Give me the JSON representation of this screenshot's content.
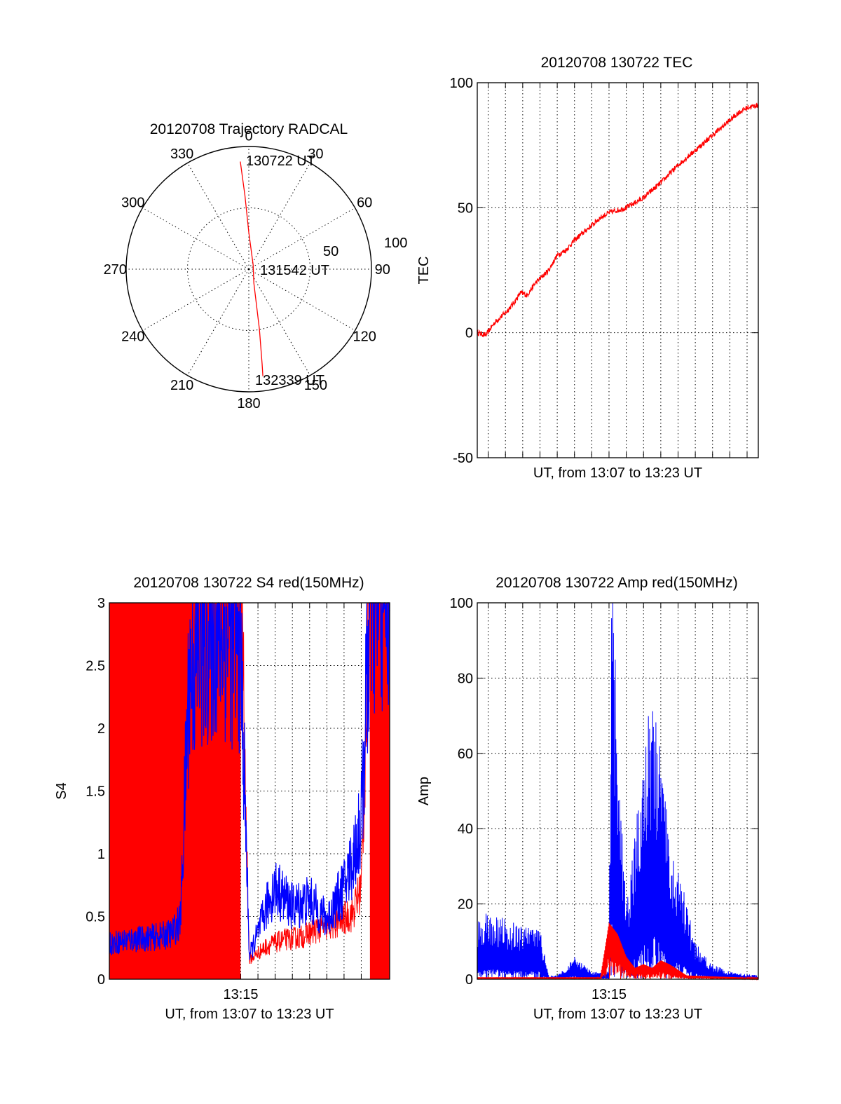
{
  "colors": {
    "red": "#ff0000",
    "blue": "#0000ff",
    "axis": "#000000"
  },
  "chart_data": [
    {
      "type": "polar",
      "title": "20120708 Trajectory RADCAL",
      "angle_ticks": [
        "0",
        "30",
        "60",
        "90",
        "120",
        "150",
        "180",
        "210",
        "240",
        "270",
        "300",
        "330"
      ],
      "radius_ticks": [
        "50",
        "100"
      ],
      "rlim": [
        0,
        100
      ],
      "angle_direction": "clockwise from top",
      "grid": true,
      "annotations": [
        "130722 UT",
        "131542 UT",
        "132339 UT"
      ],
      "series": [
        {
          "color": "#ff0000",
          "points_az_r": [
            [
              355.5,
              88
            ],
            [
              357,
              60
            ],
            [
              0,
              30
            ],
            [
              45,
              5
            ],
            [
              160,
              12
            ],
            [
              170,
              50
            ],
            [
              172,
              78
            ],
            [
              172.5,
              88
            ]
          ]
        }
      ]
    },
    {
      "type": "line",
      "title": "20120708 130722 TEC",
      "xlabel": "UT, from 13:07 to 13:23 UT",
      "ylabel": "TEC",
      "xlim": [
        "13:07:22",
        "13:23:39"
      ],
      "ylim": [
        -50,
        100
      ],
      "yticks": [
        "-50",
        "0",
        "50",
        "100"
      ],
      "grid": true,
      "series": [
        {
          "color": "#ff0000",
          "x": [
            "13:07:22",
            "13:07:52",
            "13:08:22",
            "13:09:00",
            "13:09:30",
            "13:09:52",
            "13:10:15",
            "13:10:45",
            "13:11:30",
            "13:12:00",
            "13:12:30",
            "13:13:00",
            "13:13:30",
            "13:14:00",
            "13:14:30",
            "13:15:00",
            "13:15:30",
            "13:16:00",
            "13:16:30",
            "13:17:00",
            "13:18:00",
            "13:19:00",
            "13:20:00",
            "13:21:00",
            "13:22:00",
            "13:22:30",
            "13:23:00",
            "13:23:39"
          ],
          "values": [
            0,
            -1,
            4,
            8,
            12,
            16,
            15,
            20,
            25,
            31,
            33,
            37,
            40,
            43,
            46,
            48,
            49,
            50,
            52,
            54,
            60,
            67,
            73,
            79,
            85,
            88,
            90,
            91
          ]
        }
      ]
    },
    {
      "type": "line",
      "title": "20120708 130722 S4 red(150MHz)",
      "xlabel": "UT, from 13:07 to 13:23 UT",
      "ylabel": "S4",
      "xlim": [
        "13:07:22",
        "13:23:39"
      ],
      "ylim": [
        0,
        3
      ],
      "yticks": [
        "0",
        "0.5",
        "1",
        "1.5",
        "2",
        "2.5",
        "3"
      ],
      "xticks": [
        "13:15"
      ],
      "grid": true,
      "series": [
        {
          "color": "#ff0000",
          "x": [
            "13:07:22",
            "13:09:00",
            "13:11:00",
            "13:13:00",
            "13:15:00",
            "13:15:30",
            "13:16:30",
            "13:17:30",
            "13:18:30",
            "13:19:30",
            "13:20:30",
            "13:21:30",
            "13:22:00",
            "13:22:30",
            "13:23:39"
          ],
          "values": [
            3,
            3,
            3,
            3,
            3,
            0.15,
            0.25,
            0.3,
            0.32,
            0.38,
            0.42,
            0.5,
            0.7,
            3,
            3
          ],
          "note": "spikes between 0 and 3 from 13:07 to 13:15 and after 13:22:30"
        },
        {
          "color": "#0000ff",
          "x": [
            "13:07:22",
            "13:08:30",
            "13:09:30",
            "13:10:30",
            "13:11:00",
            "13:11:30",
            "13:12:00",
            "13:13:00",
            "13:14:00",
            "13:15:00",
            "13:15:30",
            "13:16:00",
            "13:16:30",
            "13:17:00",
            "13:18:00",
            "13:19:00",
            "13:20:00",
            "13:21:00",
            "13:21:30",
            "13:22:00",
            "13:22:30",
            "13:23:00",
            "13:23:39"
          ],
          "values": [
            0.27,
            0.3,
            0.31,
            0.33,
            0.35,
            0.45,
            2.3,
            2.6,
            2.7,
            2.5,
            0.18,
            0.35,
            0.55,
            0.7,
            0.55,
            0.6,
            0.45,
            0.7,
            0.9,
            1.2,
            2.8,
            2.9,
            3
          ],
          "note": "noisy"
        }
      ]
    },
    {
      "type": "line",
      "title": "20120708 130722 Amp red(150MHz)",
      "xlabel": "UT, from 13:07 to 13:23 UT",
      "ylabel": "Amp",
      "xlim": [
        "13:07:22",
        "13:23:39"
      ],
      "ylim": [
        0,
        100
      ],
      "yticks": [
        "0",
        "20",
        "40",
        "60",
        "80",
        "100"
      ],
      "xticks": [
        "13:15"
      ],
      "grid": true,
      "series": [
        {
          "color": "#ff0000",
          "x": [
            "13:07:22",
            "13:11:30",
            "13:14:30",
            "13:15:00",
            "13:15:30",
            "13:16:00",
            "13:16:30",
            "13:17:00",
            "13:17:30",
            "13:18:00",
            "13:18:30",
            "13:19:30",
            "13:23:39"
          ],
          "values": [
            0.5,
            0.5,
            0.5,
            15,
            12,
            6,
            3,
            4,
            3,
            5,
            4,
            1,
            0.3
          ]
        },
        {
          "color": "#0000ff",
          "x": [
            "13:07:22",
            "13:08:00",
            "13:09:00",
            "13:10:00",
            "13:11:00",
            "13:11:30",
            "13:12:00",
            "13:13:00",
            "13:14:00",
            "13:15:00",
            "13:15:10",
            "13:15:30",
            "13:16:00",
            "13:16:30",
            "13:17:00",
            "13:17:30",
            "13:18:00",
            "13:18:30",
            "13:19:00",
            "13:19:30",
            "13:20:00",
            "13:21:00",
            "13:22:00",
            "13:23:39"
          ],
          "values": [
            8,
            9,
            8,
            7,
            7,
            0.5,
            0.5,
            3,
            1,
            1,
            65,
            30,
            10,
            20,
            30,
            40,
            30,
            20,
            15,
            10,
            5,
            2,
            1,
            0.5
          ],
          "note": "noisy, envelope peak 65 near 13:15"
        }
      ]
    }
  ]
}
